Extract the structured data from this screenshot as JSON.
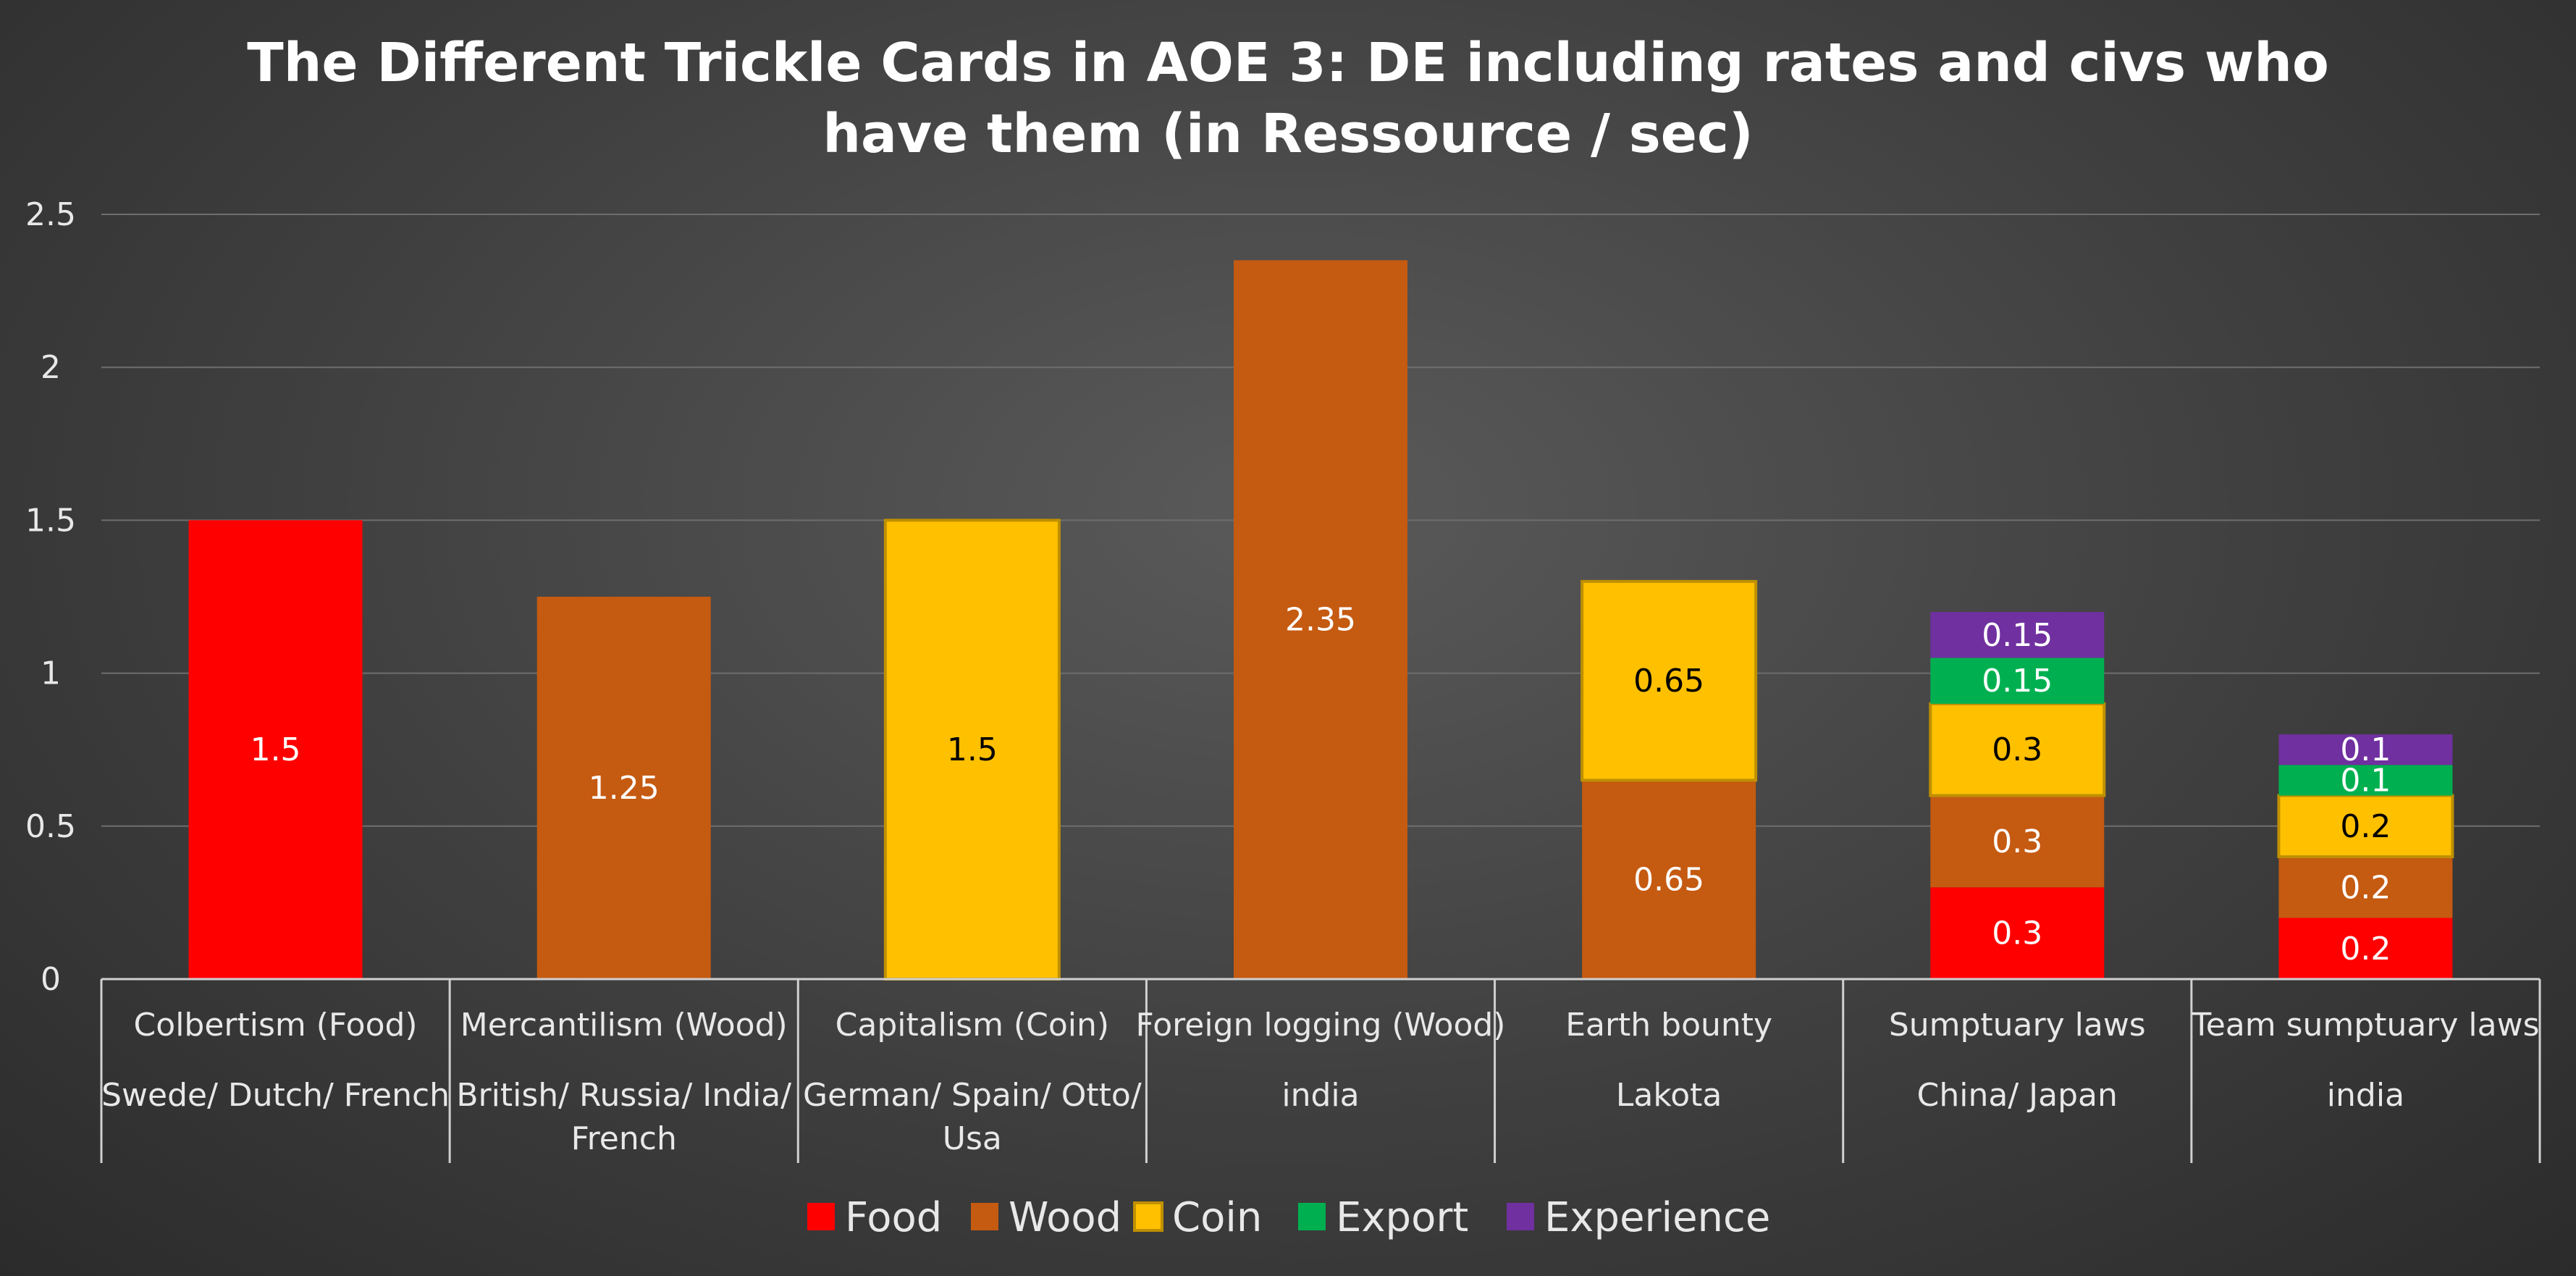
{
  "chart_data": {
    "type": "stacked-bar",
    "title_lines": [
      "The Different Trickle Cards in AOE 3: DE including rates and civs who",
      "have them (in Ressource / sec)"
    ],
    "ylim": [
      0,
      2.5
    ],
    "yticks": [
      0,
      0.5,
      1,
      1.5,
      2,
      2.5
    ],
    "ytick_labels": [
      "0",
      "0.5",
      "1",
      "1.5",
      "2",
      "2.5"
    ],
    "grid": true,
    "legend_position": "bottom",
    "categories": [
      {
        "name": "Colbertism (Food)",
        "civs": [
          "Swede/ Dutch/ French"
        ]
      },
      {
        "name": "Mercantilism (Wood)",
        "civs": [
          "British/ Russia/ India/",
          "French"
        ]
      },
      {
        "name": "Capitalism (Coin)",
        "civs": [
          "German/ Spain/ Otto/",
          "Usa"
        ]
      },
      {
        "name": "Foreign logging (Wood)",
        "civs": [
          "india"
        ]
      },
      {
        "name": "Earth bounty",
        "civs": [
          "Lakota"
        ]
      },
      {
        "name": "Sumptuary laws",
        "civs": [
          "China/ Japan"
        ]
      },
      {
        "name": "Team sumptuary laws",
        "civs": [
          "india"
        ]
      }
    ],
    "series": [
      {
        "name": "Food",
        "color": "#ff0000",
        "label_color": "#ffffff",
        "values": [
          1.5,
          0,
          0,
          0,
          0,
          0.3,
          0.2
        ]
      },
      {
        "name": "Wood",
        "color": "#c55a11",
        "label_color": "#ffffff",
        "values": [
          0,
          1.25,
          0,
          2.35,
          0.65,
          0.3,
          0.2
        ]
      },
      {
        "name": "Coin",
        "color": "#ffc000",
        "label_color": "#000000",
        "border": "#bf9000",
        "values": [
          0,
          0,
          1.5,
          0,
          0.65,
          0.3,
          0.2
        ]
      },
      {
        "name": "Export",
        "color": "#00b050",
        "label_color": "#ffffff",
        "values": [
          0,
          0,
          0,
          0,
          0,
          0.15,
          0.1
        ]
      },
      {
        "name": "Experience",
        "color": "#7030a0",
        "label_color": "#ffffff",
        "values": [
          0,
          0,
          0,
          0,
          0,
          0.15,
          0.1
        ]
      }
    ],
    "data_labels": [
      [
        "1.5",
        "",
        "",
        "",
        "",
        "0.3",
        "0.2"
      ],
      [
        "",
        "1.25",
        "",
        "2.35",
        "0.65",
        "0.3",
        "0.2"
      ],
      [
        "",
        "",
        "1.5",
        "",
        "0.65",
        "0.3",
        "0.2"
      ],
      [
        "",
        "",
        "",
        "",
        "",
        "0.15",
        "0.1"
      ],
      [
        "",
        "",
        "",
        "",
        "",
        "0.15",
        "0.1"
      ]
    ]
  }
}
